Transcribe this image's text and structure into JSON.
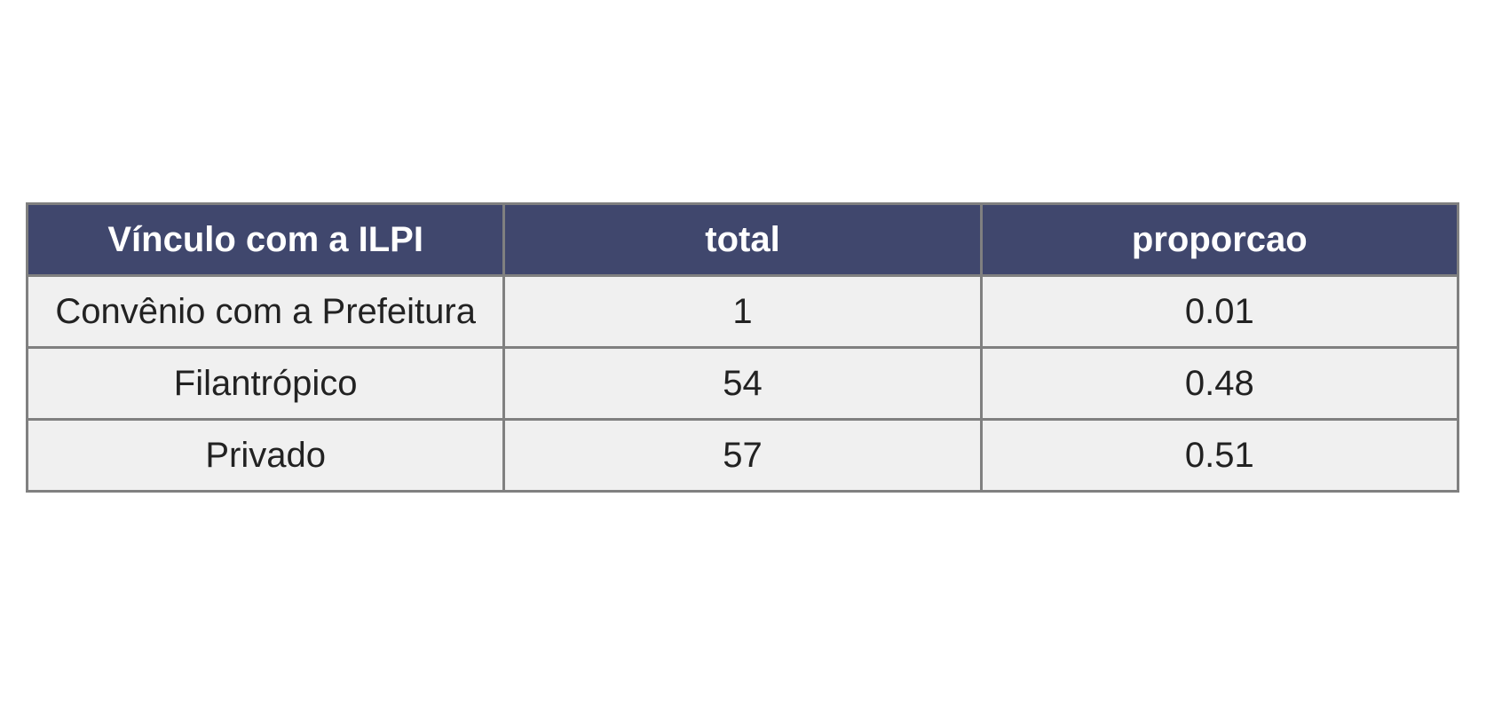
{
  "chart_data": {
    "type": "table",
    "columns": [
      "Vínculo com a ILPI",
      "total",
      "proporcao"
    ],
    "rows": [
      [
        "Convênio com a Prefeitura",
        "1",
        "0.01"
      ],
      [
        "Filantrópico",
        "54",
        "0.48"
      ],
      [
        "Privado",
        "57",
        "0.51"
      ]
    ],
    "colors": {
      "header_background": "#40476d",
      "header_text": "#ffffff",
      "cell_background": "#f0f0f0",
      "cell_text": "#222222",
      "border": "#808080"
    }
  }
}
